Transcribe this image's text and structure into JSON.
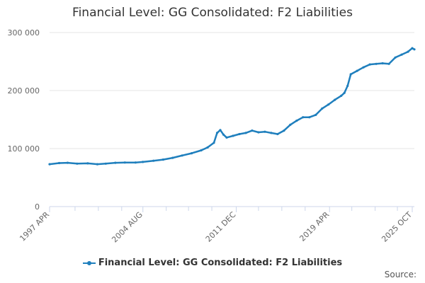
{
  "page": {
    "title": "Financial Level: GG Consolidated: F2 Liabilities",
    "source_label": "Source:"
  },
  "colors": {
    "series": "#1f7fbd",
    "grid": "#e6e6e6",
    "axis": "#ccd6eb",
    "tick_text": "#666666"
  },
  "chart_data": {
    "type": "line",
    "title": "Financial Level: GG Consolidated: F2 Liabilities",
    "xlabel": "",
    "ylabel": "",
    "xlim": [
      "1997-04",
      "2025-12"
    ],
    "ylim": [
      0,
      300000
    ],
    "y_ticks": [
      {
        "value": 0,
        "label": "0"
      },
      {
        "value": 100000,
        "label": "100 000"
      },
      {
        "value": 200000,
        "label": "200 000"
      },
      {
        "value": 300000,
        "label": "300 000"
      }
    ],
    "x_ticks": [
      {
        "date": "1997-04",
        "label": "1997 APR"
      },
      {
        "date": "2004-08",
        "label": "2004 AUG"
      },
      {
        "date": "2011-12",
        "label": "2011 DEC"
      },
      {
        "date": "2019-04",
        "label": "2019 APR"
      },
      {
        "date": "2025-10",
        "label": "2025 OCT"
      }
    ],
    "x_minor_ticks": [
      "1999-04",
      "2001-02",
      "2002-12",
      "2006-06",
      "2008-03",
      "2010-01",
      "2013-09",
      "2015-07",
      "2017-05",
      "2021-01",
      "2022-11",
      "2024-08"
    ],
    "grid": true,
    "legend_position": "bottom",
    "series": [
      {
        "name": "Financial Level: GG Consolidated: F2 Liabilities",
        "points": [
          [
            "1997-04",
            73000
          ],
          [
            "1998-01",
            75000
          ],
          [
            "1998-09",
            75500
          ],
          [
            "1999-06",
            74000
          ],
          [
            "2000-04",
            74500
          ],
          [
            "2001-01",
            73000
          ],
          [
            "2001-09",
            74000
          ],
          [
            "2002-06",
            75500
          ],
          [
            "2003-03",
            76000
          ],
          [
            "2004-01",
            76000
          ],
          [
            "2004-08",
            77000
          ],
          [
            "2005-06",
            79000
          ],
          [
            "2006-03",
            81000
          ],
          [
            "2006-12",
            84000
          ],
          [
            "2007-09",
            88000
          ],
          [
            "2008-06",
            92000
          ],
          [
            "2009-03",
            97000
          ],
          [
            "2009-09",
            102000
          ],
          [
            "2010-03",
            110000
          ],
          [
            "2010-06",
            127000
          ],
          [
            "2010-09",
            132000
          ],
          [
            "2010-12",
            124000
          ],
          [
            "2011-03",
            119000
          ],
          [
            "2011-09",
            122000
          ],
          [
            "2012-03",
            125000
          ],
          [
            "2012-09",
            127000
          ],
          [
            "2013-03",
            131000
          ],
          [
            "2013-09",
            128000
          ],
          [
            "2014-03",
            129000
          ],
          [
            "2014-09",
            127000
          ],
          [
            "2015-03",
            125000
          ],
          [
            "2015-09",
            131000
          ],
          [
            "2016-03",
            141000
          ],
          [
            "2016-09",
            148000
          ],
          [
            "2017-03",
            154000
          ],
          [
            "2017-09",
            154000
          ],
          [
            "2018-03",
            158000
          ],
          [
            "2018-09",
            169000
          ],
          [
            "2019-03",
            176000
          ],
          [
            "2019-09",
            184000
          ],
          [
            "2020-03",
            191000
          ],
          [
            "2020-06",
            196000
          ],
          [
            "2020-09",
            208000
          ],
          [
            "2020-12",
            228000
          ],
          [
            "2021-06",
            234000
          ],
          [
            "2021-12",
            240000
          ],
          [
            "2022-06",
            245000
          ],
          [
            "2022-12",
            246000
          ],
          [
            "2023-06",
            247000
          ],
          [
            "2023-12",
            246000
          ],
          [
            "2024-06",
            257000
          ],
          [
            "2024-12",
            262000
          ],
          [
            "2025-06",
            267000
          ],
          [
            "2025-10",
            273000
          ],
          [
            "2025-12",
            271000
          ]
        ]
      }
    ]
  }
}
